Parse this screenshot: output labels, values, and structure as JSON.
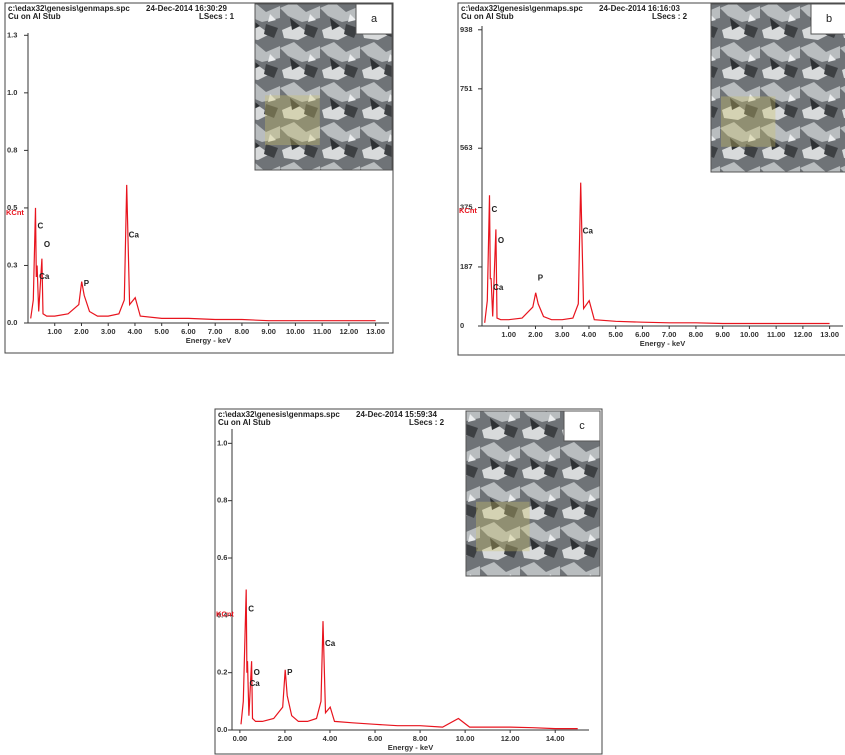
{
  "chart_data": [
    {
      "type": "line",
      "file": "c:\\edax32\\genesis\\genmaps.spc",
      "date": "24-Dec-2014 16:30:29",
      "sample": "Cu on Al Stub",
      "lsecs": "LSecs :  1",
      "panel_label": "a",
      "y_label": "KCnt",
      "x_label": "Energy - keV",
      "color": "#e8141e",
      "xlim": [
        0,
        13.5
      ],
      "ylim": [
        0,
        1.26
      ],
      "yticks": [
        {
          "value": 1.25,
          "label": "1.3"
        },
        {
          "value": 1,
          "label": "1.0"
        },
        {
          "value": 0.75,
          "label": "0.8"
        },
        0.5,
        {
          "value": 0.25,
          "label": "0.3"
        },
        {
          "value": 0,
          "label": "0.0"
        }
      ],
      "xticks": [
        {
          "value": 1,
          "label": "1.00"
        },
        {
          "value": 2,
          "label": "2.00"
        },
        {
          "value": 3,
          "label": "3.00"
        },
        {
          "value": 4,
          "label": "4.00"
        },
        {
          "value": 5,
          "label": "5.00"
        },
        {
          "value": 6,
          "label": "6.00"
        },
        {
          "value": 7,
          "label": "7.00"
        },
        {
          "value": 8,
          "label": "8.00"
        },
        {
          "value": 9,
          "label": "9.00"
        },
        {
          "value": 10,
          "label": "10.00"
        },
        {
          "value": 11,
          "label": "11.00"
        },
        {
          "value": 12,
          "label": "12.00"
        },
        {
          "value": 13,
          "label": "13.00"
        }
      ],
      "x": [
        0.1,
        0.2,
        0.28,
        0.31,
        0.34,
        0.4,
        0.52,
        0.56,
        0.7,
        1.0,
        1.5,
        1.9,
        2.01,
        2.1,
        2.3,
        2.6,
        3.0,
        3.4,
        3.6,
        3.69,
        3.8,
        4.01,
        4.2,
        5,
        6,
        7,
        8,
        9,
        10,
        11,
        12,
        13
      ],
      "values": [
        0.02,
        0.1,
        0.5,
        0.2,
        0.25,
        0.05,
        0.28,
        0.04,
        0.03,
        0.03,
        0.04,
        0.08,
        0.18,
        0.12,
        0.05,
        0.03,
        0.03,
        0.04,
        0.1,
        0.6,
        0.08,
        0.11,
        0.03,
        0.02,
        0.02,
        0.015,
        0.015,
        0.01,
        0.01,
        0.01,
        0.01,
        0.01
      ],
      "annotations": [
        {
          "text": "C",
          "x": 0.28,
          "y": 0.42
        },
        {
          "text": "O",
          "x": 0.52,
          "y": 0.34
        },
        {
          "text": "Ca",
          "x": 0.34,
          "y": 0.2
        },
        {
          "text": "P",
          "x": 2.01,
          "y": 0.17
        },
        {
          "text": "Ca",
          "x": 3.69,
          "y": 0.38
        }
      ]
    },
    {
      "type": "line",
      "file": "c:\\edax32\\genesis\\genmaps.spc",
      "date": "24-Dec-2014 16:16:03",
      "sample": "Cu on Al Stub",
      "lsecs": "LSecs :  2",
      "panel_label": "b",
      "y_label": "KCnt",
      "x_label": "Energy - keV",
      "color": "#e8141e",
      "xlim": [
        0,
        13.5
      ],
      "ylim": [
        0,
        950
      ],
      "yticks": [
        938,
        751,
        563,
        375,
        187,
        0
      ],
      "xticks": [
        {
          "value": 1,
          "label": "1.00"
        },
        {
          "value": 2,
          "label": "2.00"
        },
        {
          "value": 3,
          "label": "3.00"
        },
        {
          "value": 4,
          "label": "4.00"
        },
        {
          "value": 5,
          "label": "5.00"
        },
        {
          "value": 6,
          "label": "6.00"
        },
        {
          "value": 7,
          "label": "7.00"
        },
        {
          "value": 8,
          "label": "8.00"
        },
        {
          "value": 9,
          "label": "9.00"
        },
        {
          "value": 10,
          "label": "10.00"
        },
        {
          "value": 11,
          "label": "11.00"
        },
        {
          "value": 12,
          "label": "12.00"
        },
        {
          "value": 13,
          "label": "13.00"
        }
      ],
      "x": [
        0.1,
        0.2,
        0.28,
        0.31,
        0.34,
        0.4,
        0.52,
        0.56,
        0.7,
        1.0,
        1.5,
        1.9,
        2.01,
        2.1,
        2.3,
        2.6,
        3.0,
        3.4,
        3.6,
        3.69,
        3.8,
        4.01,
        4.2,
        5,
        6,
        7,
        8,
        9,
        10,
        11,
        12,
        13
      ],
      "values": [
        10,
        80,
        414,
        150,
        150,
        30,
        306,
        25,
        20,
        20,
        25,
        60,
        105,
        70,
        30,
        20,
        20,
        25,
        70,
        454,
        55,
        80,
        20,
        15,
        12,
        10,
        10,
        8,
        8,
        8,
        8,
        8
      ],
      "annotations": [
        {
          "text": "C",
          "x": 0.28,
          "y": 368
        },
        {
          "text": "O",
          "x": 0.52,
          "y": 270
        },
        {
          "text": "Ca",
          "x": 0.34,
          "y": 120
        },
        {
          "text": "P",
          "x": 2.01,
          "y": 150
        },
        {
          "text": "Ca",
          "x": 3.69,
          "y": 300
        }
      ]
    },
    {
      "type": "line",
      "file": "c:\\edax32\\genesis\\genmaps.spc",
      "date": "24-Dec-2014 15:59:34",
      "sample": "Cu on Al Stub",
      "lsecs": "LSecs :  2",
      "panel_label": "c",
      "y_label": "KCnt",
      "x_label": "Energy - keV",
      "color": "#e8141e",
      "xlim": [
        -0.35,
        15.5
      ],
      "ylim": [
        0,
        1.05
      ],
      "yticks": [
        {
          "value": 1,
          "label": "1.0"
        },
        0.8,
        0.6,
        0.4,
        0.2,
        {
          "value": 0,
          "label": "0.0"
        }
      ],
      "xticks": [
        {
          "value": 0,
          "label": "0.00"
        },
        {
          "value": 2,
          "label": "2.00"
        },
        {
          "value": 4,
          "label": "4.00"
        },
        {
          "value": 6,
          "label": "6.00"
        },
        {
          "value": 8,
          "label": "8.00"
        },
        {
          "value": 10,
          "label": "10.00"
        },
        {
          "value": 12,
          "label": "12.00"
        },
        {
          "value": 14,
          "label": "14.00"
        }
      ],
      "x": [
        0.05,
        0.15,
        0.28,
        0.31,
        0.34,
        0.4,
        0.52,
        0.56,
        0.7,
        1.0,
        1.5,
        1.9,
        2.01,
        2.1,
        2.3,
        2.6,
        3.0,
        3.4,
        3.6,
        3.69,
        3.8,
        4.01,
        4.2,
        5,
        6,
        7,
        8,
        9,
        9.7,
        10.2,
        11,
        12,
        13,
        14,
        15
      ],
      "values": [
        0.02,
        0.1,
        0.49,
        0.2,
        0.24,
        0.05,
        0.24,
        0.04,
        0.03,
        0.03,
        0.04,
        0.08,
        0.21,
        0.12,
        0.05,
        0.03,
        0.03,
        0.04,
        0.1,
        0.38,
        0.06,
        0.08,
        0.03,
        0.025,
        0.02,
        0.015,
        0.015,
        0.01,
        0.04,
        0.01,
        0.01,
        0.01,
        0.008,
        0.005,
        0.005
      ],
      "annotations": [
        {
          "text": "C",
          "x": 0.28,
          "y": 0.42
        },
        {
          "text": "O",
          "x": 0.52,
          "y": 0.2
        },
        {
          "text": "Ca",
          "x": 0.34,
          "y": 0.16
        },
        {
          "text": "P",
          "x": 2.01,
          "y": 0.2
        },
        {
          "text": "Ca",
          "x": 3.69,
          "y": 0.3
        }
      ]
    }
  ]
}
